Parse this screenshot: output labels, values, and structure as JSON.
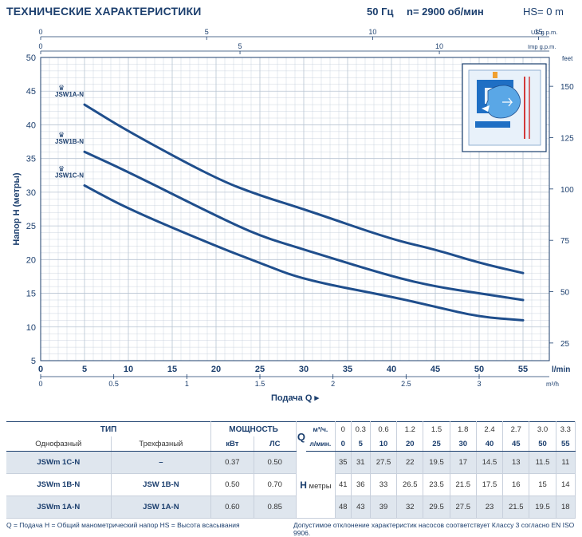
{
  "header": {
    "title": "ТЕХНИЧЕСКИЕ ХАРАКТЕРИСТИКИ",
    "freq": "50 Гц",
    "speed": "n= 2900  об/мин",
    "hs": "HS= 0 m"
  },
  "chart_data": {
    "type": "line",
    "xlabel": "Подача Q",
    "ylabel": "Напор H  (метры)",
    "x_unit": "l/min",
    "x": [
      5,
      10,
      15,
      20,
      25,
      30,
      35,
      40,
      45,
      50,
      55
    ],
    "xlim": [
      0,
      58
    ],
    "ylim": [
      5,
      50
    ],
    "y_ticks": [
      5,
      10,
      15,
      20,
      25,
      30,
      35,
      40,
      45,
      50
    ],
    "x_ticks": [
      0,
      5,
      10,
      15,
      20,
      25,
      30,
      35,
      40,
      45,
      50,
      55
    ],
    "grid": true,
    "series": [
      {
        "name": "JSW1A-N",
        "x": [
          5,
          10,
          20,
          25,
          30,
          40,
          45,
          50,
          55
        ],
        "values": [
          43,
          39,
          32,
          29.5,
          27.5,
          23,
          21.5,
          19.5,
          18
        ]
      },
      {
        "name": "JSW1B-N",
        "x": [
          5,
          10,
          20,
          25,
          30,
          40,
          45,
          50,
          55
        ],
        "values": [
          36,
          33,
          26.5,
          23.5,
          21.5,
          17.5,
          16,
          15,
          14
        ]
      },
      {
        "name": "JSW1C-N",
        "x": [
          5,
          10,
          20,
          25,
          30,
          40,
          45,
          50,
          55
        ],
        "values": [
          31,
          27.5,
          22,
          19.5,
          17,
          14.5,
          13,
          11.5,
          11
        ]
      }
    ],
    "top_axis_us": {
      "unit": "US g.p.m.",
      "ticks": [
        0,
        5,
        10,
        15
      ]
    },
    "top_axis_imp": {
      "unit": "Imp g.p.m.",
      "ticks": [
        0,
        5,
        10
      ]
    },
    "bottom_axis_m3h": {
      "unit": "m³/h",
      "ticks": [
        "0",
        "0.5",
        "1",
        "1.5",
        "2",
        "2.5",
        "3"
      ]
    },
    "right_axis_feet": {
      "unit": "feet",
      "ticks": [
        25,
        50,
        75,
        100,
        125,
        150
      ]
    }
  },
  "table": {
    "type_header": "ТИП",
    "power_header": "МОЩНОСТЬ",
    "q_label": "Q",
    "q_unit1": "м³/ч.",
    "q_unit2": "л/мин.",
    "single_phase": "Однофазный",
    "three_phase": "Трехфазный",
    "kw": "кВт",
    "hp": "ЛС",
    "h_label": "H",
    "h_unit": "метры",
    "q_m3h": [
      "0",
      "0.3",
      "0.6",
      "1.2",
      "1.5",
      "1.8",
      "2.4",
      "2.7",
      "3.0",
      "3.3"
    ],
    "q_lmin": [
      "0",
      "5",
      "10",
      "20",
      "25",
      "30",
      "40",
      "45",
      "50",
      "55"
    ],
    "rows": [
      {
        "single": "JSWm 1C-N",
        "three": "–",
        "kw": "0.37",
        "hp": "0.50",
        "h": [
          "35",
          "31",
          "27.5",
          "22",
          "19.5",
          "17",
          "14.5",
          "13",
          "11.5",
          "11"
        ]
      },
      {
        "single": "JSWm 1B-N",
        "three": "JSW 1B-N",
        "kw": "0.50",
        "hp": "0.70",
        "h": [
          "41",
          "36",
          "33",
          "26.5",
          "23.5",
          "21.5",
          "17.5",
          "16",
          "15",
          "14"
        ]
      },
      {
        "single": "JSWm 1A-N",
        "three": "JSW 1A-N",
        "kw": "0.60",
        "hp": "0.85",
        "h": [
          "48",
          "43",
          "39",
          "32",
          "29.5",
          "27.5",
          "23",
          "21.5",
          "19.5",
          "18"
        ]
      }
    ]
  },
  "footer": {
    "left": "Q = Подача   H = Общий манометрический напор   HS = Высота всасывания",
    "right": "Допустимое отклонение характеристик насосов соответствует Классу 3 согласно EN ISO 9906."
  },
  "colors": {
    "curve": "#1f4e8c",
    "grid": "#b8c4d2",
    "text": "#1c3f6e",
    "shade": "#dfe6ee"
  }
}
